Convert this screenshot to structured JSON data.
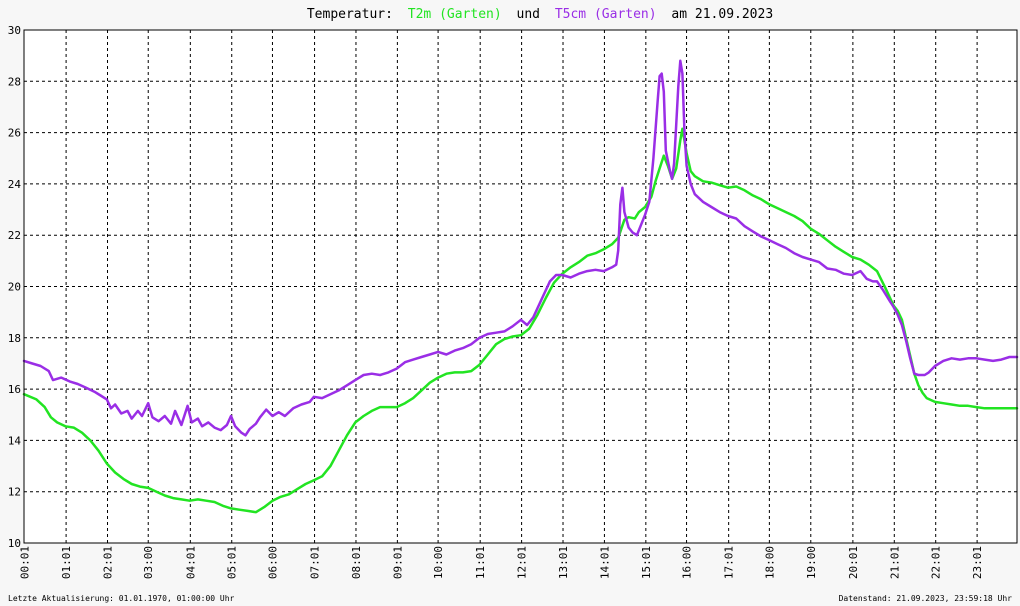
{
  "chart_data": {
    "type": "line",
    "title": {
      "prefix": "Temperatur:",
      "connector": "und",
      "suffix": "am 21.09.2023"
    },
    "xlabel": "",
    "ylabel": "",
    "ylim": [
      10,
      30
    ],
    "xlim": [
      0.0,
      23.98
    ],
    "grid": true,
    "y_ticks": [
      "10",
      "12",
      "14",
      "16",
      "18",
      "20",
      "22",
      "24",
      "26",
      "28",
      "30"
    ],
    "x_ticks": [
      {
        "h": 0.0167,
        "label": "00:01"
      },
      {
        "h": 1.0167,
        "label": "01:01"
      },
      {
        "h": 2.0167,
        "label": "02:01"
      },
      {
        "h": 3.0,
        "label": "03:00"
      },
      {
        "h": 4.0167,
        "label": "04:01"
      },
      {
        "h": 5.0167,
        "label": "05:01"
      },
      {
        "h": 6.0,
        "label": "06:00"
      },
      {
        "h": 7.0167,
        "label": "07:01"
      },
      {
        "h": 8.0167,
        "label": "08:01"
      },
      {
        "h": 9.0167,
        "label": "09:01"
      },
      {
        "h": 10.0,
        "label": "10:00"
      },
      {
        "h": 11.0167,
        "label": "11:01"
      },
      {
        "h": 12.0167,
        "label": "12:01"
      },
      {
        "h": 13.0167,
        "label": "13:01"
      },
      {
        "h": 14.0167,
        "label": "14:01"
      },
      {
        "h": 15.0167,
        "label": "15:01"
      },
      {
        "h": 16.0,
        "label": "16:00"
      },
      {
        "h": 17.0167,
        "label": "17:01"
      },
      {
        "h": 18.0,
        "label": "18:00"
      },
      {
        "h": 19.0,
        "label": "19:00"
      },
      {
        "h": 20.0167,
        "label": "20:01"
      },
      {
        "h": 21.0167,
        "label": "21:01"
      },
      {
        "h": 22.0167,
        "label": "22:01"
      },
      {
        "h": 23.0167,
        "label": "23:01"
      }
    ],
    "series": [
      {
        "name": "T2m (Garten)",
        "color": "#22e422",
        "points": [
          [
            0.0,
            15.8
          ],
          [
            0.3,
            15.6
          ],
          [
            0.5,
            15.3
          ],
          [
            0.65,
            14.9
          ],
          [
            0.8,
            14.7
          ],
          [
            1.0,
            14.55
          ],
          [
            1.2,
            14.5
          ],
          [
            1.4,
            14.3
          ],
          [
            1.6,
            14.0
          ],
          [
            1.8,
            13.6
          ],
          [
            2.0,
            13.1
          ],
          [
            2.2,
            12.75
          ],
          [
            2.4,
            12.5
          ],
          [
            2.6,
            12.3
          ],
          [
            2.8,
            12.2
          ],
          [
            3.0,
            12.15
          ],
          [
            3.2,
            12.0
          ],
          [
            3.4,
            11.85
          ],
          [
            3.6,
            11.75
          ],
          [
            3.8,
            11.7
          ],
          [
            4.0,
            11.65
          ],
          [
            4.2,
            11.7
          ],
          [
            4.4,
            11.65
          ],
          [
            4.6,
            11.6
          ],
          [
            4.8,
            11.45
          ],
          [
            5.0,
            11.35
          ],
          [
            5.2,
            11.3
          ],
          [
            5.4,
            11.25
          ],
          [
            5.6,
            11.2
          ],
          [
            5.8,
            11.4
          ],
          [
            6.0,
            11.65
          ],
          [
            6.2,
            11.8
          ],
          [
            6.4,
            11.9
          ],
          [
            6.6,
            12.1
          ],
          [
            6.8,
            12.3
          ],
          [
            7.0,
            12.45
          ],
          [
            7.2,
            12.6
          ],
          [
            7.4,
            13.0
          ],
          [
            7.6,
            13.6
          ],
          [
            7.8,
            14.2
          ],
          [
            8.0,
            14.7
          ],
          [
            8.2,
            14.95
          ],
          [
            8.4,
            15.15
          ],
          [
            8.6,
            15.3
          ],
          [
            8.8,
            15.3
          ],
          [
            9.0,
            15.3
          ],
          [
            9.2,
            15.45
          ],
          [
            9.4,
            15.65
          ],
          [
            9.6,
            15.95
          ],
          [
            9.8,
            16.25
          ],
          [
            10.0,
            16.45
          ],
          [
            10.2,
            16.6
          ],
          [
            10.4,
            16.65
          ],
          [
            10.6,
            16.65
          ],
          [
            10.8,
            16.7
          ],
          [
            11.0,
            16.95
          ],
          [
            11.2,
            17.35
          ],
          [
            11.4,
            17.75
          ],
          [
            11.6,
            17.95
          ],
          [
            11.8,
            18.05
          ],
          [
            12.0,
            18.1
          ],
          [
            12.2,
            18.35
          ],
          [
            12.4,
            18.9
          ],
          [
            12.6,
            19.55
          ],
          [
            12.8,
            20.15
          ],
          [
            13.0,
            20.5
          ],
          [
            13.2,
            20.75
          ],
          [
            13.4,
            20.95
          ],
          [
            13.6,
            21.2
          ],
          [
            13.8,
            21.3
          ],
          [
            14.0,
            21.45
          ],
          [
            14.2,
            21.65
          ],
          [
            14.35,
            21.9
          ],
          [
            14.5,
            22.6
          ],
          [
            14.6,
            22.7
          ],
          [
            14.75,
            22.65
          ],
          [
            14.85,
            22.9
          ],
          [
            15.0,
            23.1
          ],
          [
            15.15,
            23.5
          ],
          [
            15.25,
            24.1
          ],
          [
            15.35,
            24.6
          ],
          [
            15.45,
            25.1
          ],
          [
            15.55,
            24.7
          ],
          [
            15.65,
            24.2
          ],
          [
            15.75,
            24.6
          ],
          [
            15.85,
            25.7
          ],
          [
            15.9,
            26.15
          ],
          [
            16.0,
            25.2
          ],
          [
            16.1,
            24.5
          ],
          [
            16.2,
            24.3
          ],
          [
            16.4,
            24.1
          ],
          [
            16.6,
            24.05
          ],
          [
            16.8,
            23.95
          ],
          [
            17.0,
            23.85
          ],
          [
            17.2,
            23.9
          ],
          [
            17.4,
            23.75
          ],
          [
            17.6,
            23.55
          ],
          [
            17.8,
            23.4
          ],
          [
            18.0,
            23.2
          ],
          [
            18.2,
            23.05
          ],
          [
            18.4,
            22.9
          ],
          [
            18.6,
            22.75
          ],
          [
            18.8,
            22.55
          ],
          [
            19.0,
            22.25
          ],
          [
            19.2,
            22.05
          ],
          [
            19.4,
            21.8
          ],
          [
            19.6,
            21.55
          ],
          [
            19.8,
            21.35
          ],
          [
            20.0,
            21.15
          ],
          [
            20.2,
            21.05
          ],
          [
            20.4,
            20.85
          ],
          [
            20.6,
            20.6
          ],
          [
            20.8,
            19.95
          ],
          [
            20.9,
            19.6
          ],
          [
            21.0,
            19.25
          ],
          [
            21.1,
            19.05
          ],
          [
            21.2,
            18.7
          ],
          [
            21.3,
            18.0
          ],
          [
            21.4,
            17.3
          ],
          [
            21.5,
            16.6
          ],
          [
            21.6,
            16.15
          ],
          [
            21.7,
            15.85
          ],
          [
            21.8,
            15.65
          ],
          [
            22.0,
            15.5
          ],
          [
            22.2,
            15.45
          ],
          [
            22.4,
            15.4
          ],
          [
            22.6,
            15.35
          ],
          [
            22.8,
            15.35
          ],
          [
            23.0,
            15.3
          ],
          [
            23.2,
            15.25
          ],
          [
            23.4,
            15.25
          ],
          [
            23.6,
            15.25
          ],
          [
            23.8,
            15.25
          ],
          [
            23.98,
            15.25
          ]
        ]
      },
      {
        "name": "T5cm (Garten)",
        "color": "#9a2ee6",
        "points": [
          [
            0.0,
            17.1
          ],
          [
            0.2,
            17.0
          ],
          [
            0.4,
            16.9
          ],
          [
            0.6,
            16.7
          ],
          [
            0.7,
            16.35
          ],
          [
            0.9,
            16.45
          ],
          [
            1.1,
            16.3
          ],
          [
            1.3,
            16.2
          ],
          [
            1.5,
            16.05
          ],
          [
            1.7,
            15.9
          ],
          [
            1.85,
            15.75
          ],
          [
            2.0,
            15.6
          ],
          [
            2.1,
            15.25
          ],
          [
            2.2,
            15.4
          ],
          [
            2.35,
            15.05
          ],
          [
            2.5,
            15.15
          ],
          [
            2.6,
            14.85
          ],
          [
            2.75,
            15.15
          ],
          [
            2.85,
            14.95
          ],
          [
            3.0,
            15.45
          ],
          [
            3.1,
            14.9
          ],
          [
            3.25,
            14.75
          ],
          [
            3.4,
            14.95
          ],
          [
            3.55,
            14.65
          ],
          [
            3.65,
            15.15
          ],
          [
            3.8,
            14.6
          ],
          [
            3.95,
            15.35
          ],
          [
            4.05,
            14.7
          ],
          [
            4.2,
            14.85
          ],
          [
            4.3,
            14.55
          ],
          [
            4.45,
            14.7
          ],
          [
            4.6,
            14.5
          ],
          [
            4.75,
            14.4
          ],
          [
            4.9,
            14.6
          ],
          [
            5.0,
            14.95
          ],
          [
            5.1,
            14.55
          ],
          [
            5.25,
            14.3
          ],
          [
            5.35,
            14.2
          ],
          [
            5.45,
            14.45
          ],
          [
            5.6,
            14.65
          ],
          [
            5.7,
            14.9
          ],
          [
            5.85,
            15.2
          ],
          [
            6.0,
            14.95
          ],
          [
            6.15,
            15.1
          ],
          [
            6.3,
            14.95
          ],
          [
            6.5,
            15.25
          ],
          [
            6.7,
            15.4
          ],
          [
            6.9,
            15.5
          ],
          [
            7.0,
            15.7
          ],
          [
            7.2,
            15.65
          ],
          [
            7.4,
            15.8
          ],
          [
            7.6,
            15.95
          ],
          [
            7.8,
            16.15
          ],
          [
            8.0,
            16.35
          ],
          [
            8.2,
            16.55
          ],
          [
            8.4,
            16.6
          ],
          [
            8.6,
            16.55
          ],
          [
            8.8,
            16.65
          ],
          [
            9.0,
            16.8
          ],
          [
            9.2,
            17.05
          ],
          [
            9.4,
            17.15
          ],
          [
            9.6,
            17.25
          ],
          [
            9.8,
            17.35
          ],
          [
            10.0,
            17.45
          ],
          [
            10.2,
            17.35
          ],
          [
            10.4,
            17.5
          ],
          [
            10.6,
            17.6
          ],
          [
            10.8,
            17.75
          ],
          [
            11.0,
            18.0
          ],
          [
            11.2,
            18.15
          ],
          [
            11.4,
            18.2
          ],
          [
            11.6,
            18.25
          ],
          [
            11.8,
            18.45
          ],
          [
            12.0,
            18.7
          ],
          [
            12.15,
            18.5
          ],
          [
            12.3,
            18.8
          ],
          [
            12.5,
            19.5
          ],
          [
            12.7,
            20.2
          ],
          [
            12.85,
            20.45
          ],
          [
            13.0,
            20.45
          ],
          [
            13.2,
            20.35
          ],
          [
            13.4,
            20.5
          ],
          [
            13.6,
            20.6
          ],
          [
            13.8,
            20.65
          ],
          [
            14.0,
            20.6
          ],
          [
            14.2,
            20.75
          ],
          [
            14.3,
            20.85
          ],
          [
            14.35,
            21.4
          ],
          [
            14.4,
            23.2
          ],
          [
            14.45,
            23.85
          ],
          [
            14.5,
            22.9
          ],
          [
            14.6,
            22.3
          ],
          [
            14.7,
            22.1
          ],
          [
            14.8,
            22.0
          ],
          [
            14.9,
            22.4
          ],
          [
            15.0,
            22.8
          ],
          [
            15.1,
            23.3
          ],
          [
            15.2,
            25.0
          ],
          [
            15.3,
            27.2
          ],
          [
            15.35,
            28.2
          ],
          [
            15.4,
            28.3
          ],
          [
            15.45,
            27.6
          ],
          [
            15.5,
            25.3
          ],
          [
            15.6,
            24.5
          ],
          [
            15.65,
            24.2
          ],
          [
            15.7,
            24.8
          ],
          [
            15.8,
            27.8
          ],
          [
            15.85,
            28.8
          ],
          [
            15.9,
            28.3
          ],
          [
            15.95,
            26.0
          ],
          [
            16.0,
            24.7
          ],
          [
            16.1,
            24.0
          ],
          [
            16.2,
            23.6
          ],
          [
            16.4,
            23.3
          ],
          [
            16.6,
            23.1
          ],
          [
            16.8,
            22.9
          ],
          [
            17.0,
            22.75
          ],
          [
            17.2,
            22.65
          ],
          [
            17.4,
            22.35
          ],
          [
            17.6,
            22.15
          ],
          [
            17.8,
            21.95
          ],
          [
            18.0,
            21.8
          ],
          [
            18.2,
            21.65
          ],
          [
            18.4,
            21.5
          ],
          [
            18.6,
            21.3
          ],
          [
            18.8,
            21.15
          ],
          [
            19.0,
            21.05
          ],
          [
            19.2,
            20.95
          ],
          [
            19.4,
            20.7
          ],
          [
            19.6,
            20.65
          ],
          [
            19.8,
            20.5
          ],
          [
            20.0,
            20.45
          ],
          [
            20.2,
            20.6
          ],
          [
            20.35,
            20.3
          ],
          [
            20.5,
            20.2
          ],
          [
            20.6,
            20.2
          ],
          [
            20.75,
            19.85
          ],
          [
            20.9,
            19.45
          ],
          [
            21.0,
            19.2
          ],
          [
            21.1,
            18.9
          ],
          [
            21.2,
            18.5
          ],
          [
            21.3,
            17.9
          ],
          [
            21.4,
            17.2
          ],
          [
            21.5,
            16.6
          ],
          [
            21.6,
            16.55
          ],
          [
            21.75,
            16.55
          ],
          [
            21.85,
            16.65
          ],
          [
            22.0,
            16.9
          ],
          [
            22.2,
            17.1
          ],
          [
            22.4,
            17.2
          ],
          [
            22.6,
            17.15
          ],
          [
            22.8,
            17.2
          ],
          [
            23.0,
            17.2
          ],
          [
            23.2,
            17.15
          ],
          [
            23.4,
            17.1
          ],
          [
            23.6,
            17.15
          ],
          [
            23.8,
            17.25
          ],
          [
            23.98,
            17.25
          ]
        ]
      }
    ]
  },
  "footer": {
    "left": "Letzte Aktualisierung: 01.01.1970, 01:00:00 Uhr",
    "right": "Datenstand: 21.09.2023, 23:59:18 Uhr"
  }
}
